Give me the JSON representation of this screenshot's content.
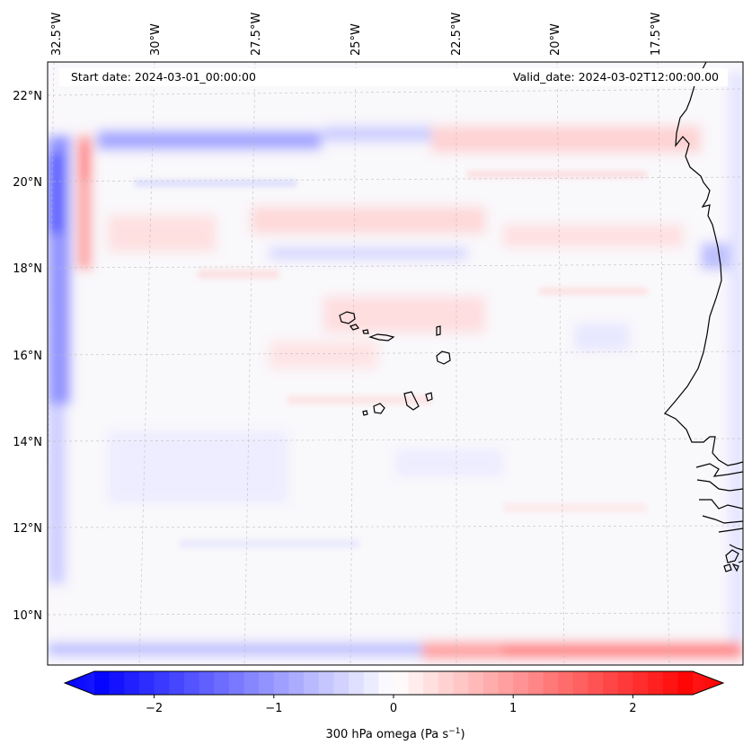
{
  "header": {
    "start_date": "Start date: 2024-03-01_00:00:00",
    "valid_date": "Valid_date: 2024-03-02T12:00:00.00"
  },
  "map": {
    "lon_labels": [
      "32.5°W",
      "30°W",
      "27.5°W",
      "25°W",
      "22.5°W",
      "20°W",
      "17.5°W"
    ],
    "lat_labels": [
      "22°N",
      "20°N",
      "18°N",
      "16°N",
      "14°N",
      "12°N",
      "10°N"
    ]
  },
  "colorbar": {
    "tick_labels": [
      "−2",
      "−1",
      "0",
      "1",
      "2"
    ],
    "tick_values": [
      -2,
      -1,
      0,
      1,
      2
    ],
    "min": -2.5,
    "max": 2.5,
    "label_main": "300 hPa omega (Pa s",
    "label_sup": "−1",
    "label_close": ")",
    "color_low": "#0000ff",
    "color_mid": "#ffffff",
    "color_high": "#ff0000"
  }
}
